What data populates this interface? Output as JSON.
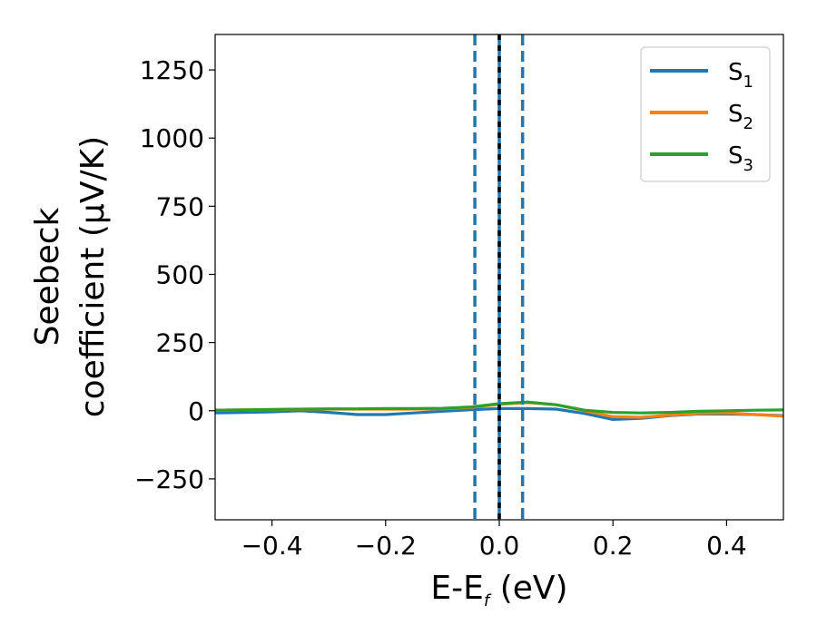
{
  "chart_data": {
    "type": "line",
    "title": "",
    "xlabel": {
      "main": "E-E",
      "sub": "f",
      "tail": " (eV)"
    },
    "ylabel": {
      "line1": "Seebeck",
      "line2": "coefficient  (μV/K)"
    },
    "xlim": [
      -0.5,
      0.5
    ],
    "ylim": [
      -400,
      1380
    ],
    "xticks": [
      -0.4,
      -0.2,
      0.0,
      0.2,
      0.4
    ],
    "xtick_labels": [
      "−0.4",
      "−0.2",
      "0.0",
      "0.2",
      "0.4"
    ],
    "yticks": [
      -250,
      0,
      250,
      500,
      750,
      1000,
      1250
    ],
    "ytick_labels": [
      "−250",
      "0",
      "250",
      "500",
      "750",
      "1000",
      "1250"
    ],
    "grid": false,
    "legend_position": "top-right",
    "series": [
      {
        "name": "S",
        "sub": "1",
        "color": "#1f77b4",
        "x": [
          -0.5,
          -0.45,
          -0.4,
          -0.35,
          -0.3,
          -0.25,
          -0.2,
          -0.15,
          -0.1,
          -0.05,
          0.0,
          0.05,
          0.1,
          0.15,
          0.2,
          0.25,
          0.3,
          0.35,
          0.4,
          0.45,
          0.5
        ],
        "y": [
          -8,
          -6,
          -4,
          0,
          -6,
          -14,
          -14,
          -8,
          -2,
          4,
          8,
          8,
          6,
          -10,
          -32,
          -28,
          -18,
          -12,
          -12,
          -14,
          -18
        ]
      },
      {
        "name": "S",
        "sub": "2",
        "color": "#ff7f0e",
        "x": [
          -0.5,
          -0.45,
          -0.4,
          -0.35,
          -0.3,
          -0.25,
          -0.2,
          -0.15,
          -0.1,
          -0.05,
          0.0,
          0.05,
          0.1,
          0.15,
          0.2,
          0.25,
          0.3,
          0.35,
          0.4,
          0.45,
          0.5
        ],
        "y": [
          2,
          3,
          4,
          5,
          6,
          6,
          6,
          6,
          7,
          12,
          24,
          30,
          22,
          0,
          -22,
          -24,
          -16,
          -10,
          -8,
          -14,
          -20
        ]
      },
      {
        "name": "S",
        "sub": "3",
        "color": "#2ca02c",
        "x": [
          -0.5,
          -0.45,
          -0.4,
          -0.35,
          -0.3,
          -0.25,
          -0.2,
          -0.15,
          -0.1,
          -0.05,
          0.0,
          0.05,
          0.1,
          0.15,
          0.2,
          0.25,
          0.3,
          0.35,
          0.4,
          0.45,
          0.5
        ],
        "y": [
          2,
          3,
          5,
          6,
          7,
          7,
          8,
          8,
          9,
          14,
          26,
          32,
          22,
          2,
          -6,
          -8,
          -6,
          -2,
          0,
          2,
          3
        ]
      }
    ],
    "vlines": [
      {
        "x": -0.043,
        "style": "dashed",
        "color": "#1f77b4"
      },
      {
        "x": 0.0,
        "style": "solid",
        "color": "#1f77b4"
      },
      {
        "x": 0.0,
        "style": "dotted",
        "color": "#000000"
      },
      {
        "x": 0.041,
        "style": "dashed",
        "color": "#1f77b4"
      }
    ]
  }
}
